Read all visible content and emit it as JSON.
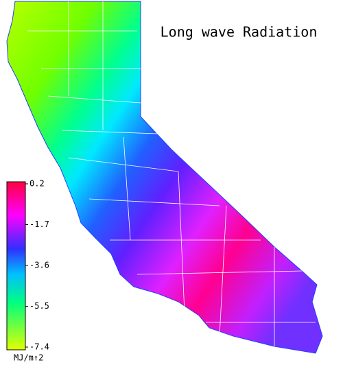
{
  "title": "Long wave Radiation",
  "colorbar": {
    "range": [
      -7.4,
      0.2
    ],
    "ticks": [
      0.2,
      -1.7,
      -3.6,
      -5.5,
      -7.4
    ],
    "unit": "MJ/m↑2"
  }
}
